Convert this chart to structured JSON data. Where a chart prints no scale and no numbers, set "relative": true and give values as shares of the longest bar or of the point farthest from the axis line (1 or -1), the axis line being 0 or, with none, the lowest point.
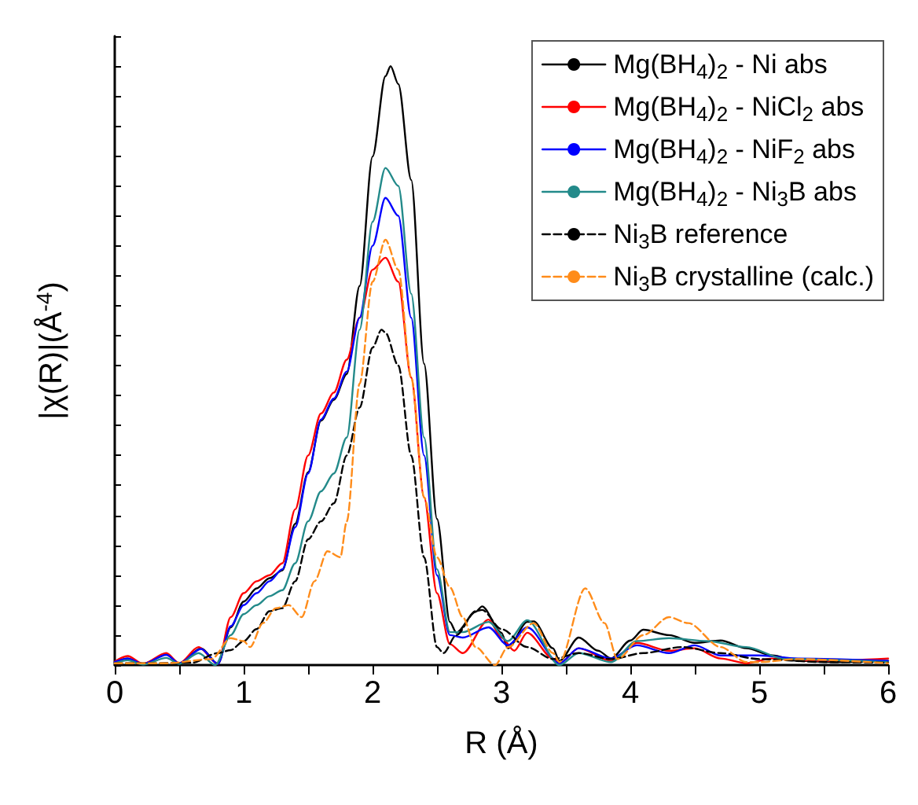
{
  "chart_data": {
    "type": "line",
    "relative": true,
    "xlabel": "R (Å)",
    "ylabel": "|χ(R)|(Å$^{-4}$)",
    "xlim": [
      0,
      6
    ],
    "xticks": [
      0,
      1,
      2,
      3,
      4,
      5,
      6
    ],
    "grid": false,
    "legend": "top right",
    "marker": "none",
    "series": [
      {
        "name": "Mg(BH$_{4}$)$_{2}$ - Ni abs",
        "color": "#000000",
        "line_style": "solid",
        "x": [
          0,
          0.1,
          0.22,
          0.4,
          0.5,
          0.67,
          0.8,
          0.9,
          1.0,
          1.1,
          1.2,
          1.3,
          1.4,
          1.5,
          1.6,
          1.7,
          1.8,
          1.9,
          2.0,
          2.1,
          2.14,
          2.2,
          2.3,
          2.4,
          2.5,
          2.6,
          2.65,
          2.8,
          2.85,
          3.0,
          3.05,
          3.2,
          3.25,
          3.4,
          3.45,
          3.6,
          3.75,
          3.85,
          4.0,
          4.1,
          4.3,
          4.5,
          4.7,
          4.9,
          5.1,
          5.3,
          5.6,
          6
        ],
        "values": [
          0.005,
          0.011,
          0.002,
          0.018,
          0.003,
          0.028,
          0.002,
          0.063,
          0.106,
          0.128,
          0.145,
          0.158,
          0.236,
          0.322,
          0.408,
          0.443,
          0.486,
          0.633,
          0.849,
          0.983,
          1,
          0.97,
          0.81,
          0.503,
          0.244,
          0.072,
          0.054,
          0.089,
          0.098,
          0.054,
          0.028,
          0.072,
          0.073,
          0.028,
          0.007,
          0.046,
          0.024,
          0.011,
          0.041,
          0.059,
          0.05,
          0.037,
          0.041,
          0.028,
          0.016,
          0.007,
          0.005,
          0.007
        ]
      },
      {
        "name": "Mg(BH$_{4}$)$_{2}$ - NiCl$_{2}$ abs",
        "color": "#ff0000",
        "line_style": "solid",
        "x": [
          0,
          0.1,
          0.22,
          0.4,
          0.5,
          0.65,
          0.8,
          0.9,
          1.0,
          1.1,
          1.2,
          1.3,
          1.4,
          1.5,
          1.6,
          1.7,
          1.8,
          1.9,
          2.0,
          2.1,
          2.2,
          2.3,
          2.4,
          2.5,
          2.6,
          2.7,
          2.9,
          3.0,
          3.1,
          3.2,
          3.4,
          3.45,
          3.6,
          3.85,
          4.05,
          4.3,
          4.5,
          4.7,
          4.9,
          5.1,
          5.5,
          6
        ],
        "values": [
          0.006,
          0.015,
          0.002,
          0.02,
          0.003,
          0.03,
          0.002,
          0.08,
          0.12,
          0.14,
          0.15,
          0.17,
          0.26,
          0.35,
          0.42,
          0.455,
          0.51,
          0.58,
          0.66,
          0.68,
          0.64,
          0.48,
          0.28,
          0.12,
          0.035,
          0.02,
          0.076,
          0.046,
          0.024,
          0.054,
          0.011,
          0.003,
          0.028,
          0.007,
          0.037,
          0.024,
          0.028,
          0.011,
          0.003,
          0.011,
          0.007,
          0.011
        ]
      },
      {
        "name": "Mg(BH$_{4}$)$_{2}$ - NiF$_{2}$ abs",
        "color": "#0000ff",
        "line_style": "solid",
        "x": [
          0,
          0.1,
          0.22,
          0.4,
          0.5,
          0.67,
          0.8,
          0.9,
          1.0,
          1.1,
          1.2,
          1.3,
          1.4,
          1.5,
          1.6,
          1.7,
          1.8,
          1.9,
          2.0,
          2.1,
          2.2,
          2.3,
          2.4,
          2.5,
          2.6,
          2.7,
          2.9,
          3.05,
          3.2,
          3.45,
          3.6,
          3.85,
          4.05,
          4.3,
          4.5,
          4.7,
          5.0,
          5.3,
          6
        ],
        "values": [
          0.005,
          0.011,
          0.002,
          0.017,
          0.003,
          0.027,
          0.002,
          0.065,
          0.1,
          0.12,
          0.14,
          0.16,
          0.23,
          0.32,
          0.41,
          0.445,
          0.49,
          0.58,
          0.7,
          0.78,
          0.75,
          0.58,
          0.35,
          0.15,
          0.05,
          0.046,
          0.063,
          0.033,
          0.063,
          0.003,
          0.028,
          0.011,
          0.033,
          0.02,
          0.033,
          0.016,
          0.016,
          0.011,
          0.007
        ]
      },
      {
        "name": "Mg(BH$_{4}$)$_{2}$ - Ni$_{3}$B abs",
        "color": "#238a8a",
        "line_style": "solid",
        "x": [
          0,
          0.1,
          0.22,
          0.4,
          0.5,
          0.65,
          0.78,
          0.9,
          1.0,
          1.1,
          1.2,
          1.3,
          1.4,
          1.5,
          1.6,
          1.7,
          1.8,
          1.9,
          2.0,
          2.1,
          2.2,
          2.3,
          2.4,
          2.5,
          2.6,
          2.7,
          2.9,
          3.05,
          3.2,
          3.45,
          3.6,
          3.85,
          4.05,
          4.3,
          4.6,
          4.9,
          5.2,
          6
        ],
        "values": [
          0.003,
          0.008,
          0.001,
          0.012,
          0.002,
          0.02,
          0,
          0.05,
          0.085,
          0.1,
          0.115,
          0.125,
          0.17,
          0.24,
          0.29,
          0.32,
          0.38,
          0.56,
          0.74,
          0.83,
          0.8,
          0.62,
          0.38,
          0.16,
          0.055,
          0.055,
          0.072,
          0.04,
          0.075,
          0,
          0.02,
          0.005,
          0.04,
          0.045,
          0.04,
          0.03,
          0.01,
          0.005
        ]
      },
      {
        "name": "Ni$_{3}$B reference",
        "color": "#000000",
        "line_style": "dashed",
        "x": [
          0,
          0.3,
          0.6,
          0.8,
          0.9,
          1.0,
          1.1,
          1.2,
          1.3,
          1.4,
          1.5,
          1.6,
          1.7,
          1.8,
          1.9,
          2.0,
          2.07,
          2.1,
          2.2,
          2.3,
          2.4,
          2.5,
          2.55,
          2.65,
          2.8,
          2.85,
          3.0,
          3.2,
          3.4,
          3.6,
          3.85,
          4.1,
          4.4,
          4.7,
          5.0,
          5.5,
          6
        ],
        "values": [
          0.003,
          0.003,
          0.004,
          0.02,
          0.025,
          0.04,
          0.06,
          0.09,
          0.095,
          0.14,
          0.21,
          0.24,
          0.27,
          0.35,
          0.43,
          0.53,
          0.56,
          0.555,
          0.5,
          0.35,
          0.18,
          0.03,
          0.02,
          0.05,
          0.09,
          0.092,
          0.06,
          0.03,
          0.01,
          0.02,
          0.01,
          0.02,
          0.03,
          0.02,
          0.01,
          0.005,
          0.004
        ]
      },
      {
        "name": "Ni$_{3}$B crystalline (calc.)",
        "color": "#ff8c1a",
        "line_style": "dashed",
        "x": [
          0,
          0.4,
          0.75,
          0.9,
          1.0,
          1.05,
          1.15,
          1.25,
          1.35,
          1.45,
          1.55,
          1.65,
          1.75,
          1.8,
          1.9,
          2.0,
          2.1,
          2.2,
          2.3,
          2.4,
          2.5,
          2.6,
          2.7,
          2.8,
          2.95,
          3.05,
          3.25,
          3.4,
          3.45,
          3.65,
          3.8,
          3.9,
          4.1,
          4.3,
          4.45,
          4.7,
          4.9,
          5.0,
          5.3,
          6
        ],
        "values": [
          0.003,
          0.003,
          0.01,
          0.045,
          0.04,
          0.03,
          0.07,
          0.095,
          0.1,
          0.08,
          0.14,
          0.19,
          0.18,
          0.24,
          0.47,
          0.64,
          0.71,
          0.66,
          0.48,
          0.28,
          0.18,
          0.13,
          0.08,
          0.03,
          0,
          0.03,
          0.07,
          0.02,
          0.005,
          0.128,
          0.07,
          0.01,
          0.05,
          0.08,
          0.07,
          0.03,
          0.005,
          0.005,
          0.01,
          0.003
        ]
      }
    ]
  }
}
